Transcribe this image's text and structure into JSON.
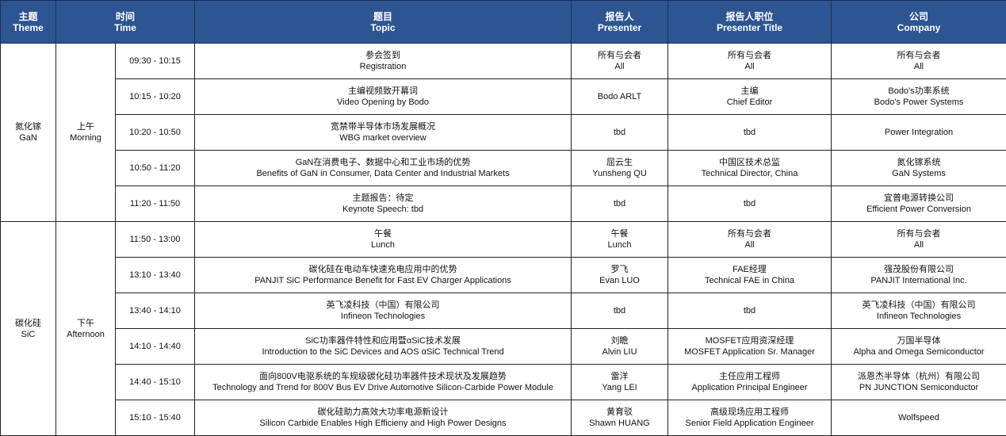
{
  "colors": {
    "header_bg": "#2c5592",
    "header_text": "#ffffff"
  },
  "header": [
    {
      "zh": "主题",
      "en": "Theme"
    },
    {
      "zh": "时间",
      "en": "Time"
    },
    {
      "zh": "题目",
      "en": "Topic"
    },
    {
      "zh": "报告人",
      "en": "Presenter"
    },
    {
      "zh": "报告人职位",
      "en": "Presenter Title"
    },
    {
      "zh": "公司",
      "en": "Company"
    }
  ],
  "themes": [
    {
      "zh": "氮化镓",
      "en": "GaN"
    },
    {
      "zh": "碳化硅",
      "en": "SiC"
    }
  ],
  "periods": [
    {
      "zh": "上午",
      "en": "Morning"
    },
    {
      "zh": "下午",
      "en": "Afternoon"
    }
  ],
  "rows": [
    {
      "time": "09:30 - 10:15",
      "topic_zh": "参会签到",
      "topic_en": "Registration",
      "presenter_zh": "所有与会者",
      "presenter_en": "All",
      "title_zh": "所有与会者",
      "title_en": "All",
      "company_zh": "所有与会者",
      "company_en": "All"
    },
    {
      "time": "10:15 - 10:20",
      "topic_zh": "主编视频致开幕词",
      "topic_en": "Video Opening by Bodo",
      "presenter_zh": "Bodo ARLT",
      "presenter_en": "",
      "title_zh": "主编",
      "title_en": "Chief Editor",
      "company_zh": "Bodo's功率系统",
      "company_en": "Bodo's Power Systems"
    },
    {
      "time": "10:20 - 10:50",
      "topic_zh": "宽禁带半导体市场发展概况",
      "topic_en": "WBG market overview",
      "presenter_zh": "tbd",
      "presenter_en": "",
      "title_zh": "tbd",
      "title_en": "",
      "company_zh": "Power Integration",
      "company_en": ""
    },
    {
      "time": "10:50 - 11:20",
      "topic_zh": "GaN在消费电子、数据中心和工业市场的优势",
      "topic_en": "Benefits of GaN in Consumer, Data Center and Industrial Markets",
      "presenter_zh": "屈云生",
      "presenter_en": "Yunsheng QU",
      "title_zh": "中国区技术总监",
      "title_en": "Technical Director, China",
      "company_zh": "氮化镓系统",
      "company_en": "GaN Systems"
    },
    {
      "time": "11:20 - 11:50",
      "topic_zh": "主题报告：待定",
      "topic_en": "Keynote Speech: tbd",
      "presenter_zh": "tbd",
      "presenter_en": "",
      "title_zh": "tbd",
      "title_en": "",
      "company_zh": "宜普电源转换公司",
      "company_en": "Efficient Power Conversion"
    },
    {
      "time": "11:50 - 13:00",
      "topic_zh": "午餐",
      "topic_en": "Lunch",
      "presenter_zh": "午餐",
      "presenter_en": "Lunch",
      "title_zh": "所有与会者",
      "title_en": "All",
      "company_zh": "所有与会者",
      "company_en": "All"
    },
    {
      "time": "13:10 - 13:40",
      "topic_zh": "碳化硅在电动车快速充电应用中的优势",
      "topic_en": "PANJIT SiC Performance Benefit for Fast EV Charger Applications",
      "presenter_zh": "罗飞",
      "presenter_en": "Evan LUO",
      "title_zh": "FAE经理",
      "title_en": "Technical FAE in China",
      "company_zh": "强茂股份有限公司",
      "company_en": "PANJIT International Inc."
    },
    {
      "time": "13:40 - 14:10",
      "topic_zh": "英飞凌科技（中国）有限公司",
      "topic_en": "Infineon Technologies",
      "presenter_zh": "tbd",
      "presenter_en": "",
      "title_zh": "tbd",
      "title_en": "",
      "company_zh": "英飞凌科技（中国）有限公司",
      "company_en": "Infineon Technologies"
    },
    {
      "time": "14:10 - 14:40",
      "topic_zh": "SiC功率器件特性和应用暨αSiC技术发展",
      "topic_en": "Introduction to the SiC Devices and AOS αSiC Technical Trend",
      "presenter_zh": "刘瞻",
      "presenter_en": "Alvin LIU",
      "title_zh": "MOSFET应用资深经理",
      "title_en": "MOSFET Application Sr. Manager",
      "company_zh": "万国半导体",
      "company_en": "Alpha and Omega Semiconductor"
    },
    {
      "time": "14:40 - 15:10",
      "topic_zh": "面向800V电驱系统的车规级碳化硅功率器件技术现状及发展趋势",
      "topic_en": "Technology and Trend for 800V Bus EV Drive Automotive Silicon-Carbide Power Module",
      "presenter_zh": "雷洋",
      "presenter_en": "Yang LEI",
      "title_zh": "主任应用工程师",
      "title_en": "Application Principal Engineer",
      "company_zh": "派恩杰半导体（杭州）有限公司",
      "company_en": "PN JUNCTION Semiconductor"
    },
    {
      "time": "15:10 - 15:40",
      "topic_zh": "碳化硅助力高效大功率电源新设计",
      "topic_en": "Silicon Carbide Enables High Efficieny and High Power Designs",
      "presenter_zh": "黄育驳",
      "presenter_en": "Shawn HUANG",
      "title_zh": "高级现场应用工程师",
      "title_en": "Senior Field Application Engineer",
      "company_zh": "Wolfspeed",
      "company_en": ""
    }
  ]
}
